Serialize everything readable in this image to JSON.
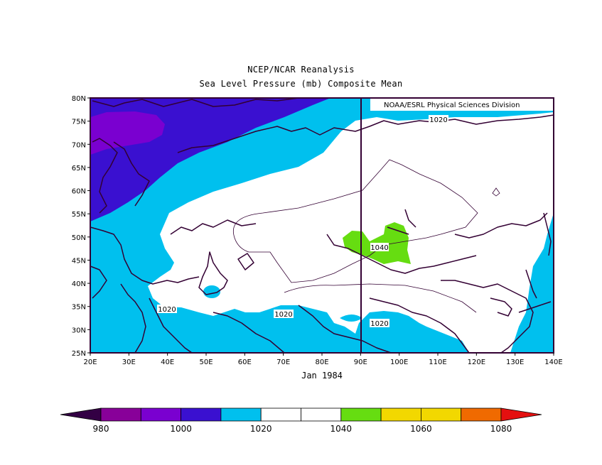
{
  "header": {
    "title": "NCEP/NCAR Reanalysis",
    "subtitle": "Sea Level Pressure (mb) Composite Mean"
  },
  "map": {
    "credit": "NOAA/ESRL Physical Sciences Division",
    "period_label": "Jan 1984",
    "lat_ticks": [
      "80N",
      "75N",
      "70N",
      "65N",
      "60N",
      "55N",
      "50N",
      "45N",
      "40N",
      "35N",
      "30N",
      "25N"
    ],
    "lon_ticks": [
      "20E",
      "30E",
      "40E",
      "50E",
      "60E",
      "70E",
      "80E",
      "90E",
      "100E",
      "110E",
      "120E",
      "130E",
      "140E"
    ],
    "contour_labels": [
      "1020",
      "1040",
      "1020",
      "1020",
      "1020"
    ],
    "extent": {
      "lon": [
        20,
        140
      ],
      "lat": [
        25,
        80
      ]
    },
    "colors": {
      "lt_990": "#7a00d0",
      "990_1010": "#3a10d0",
      "1010_1020": "#00c0ee",
      "1020_1040": "#ffffff",
      "1040_1050": "#66dd11",
      "frame": "#330033"
    }
  },
  "colorbar": {
    "labels": [
      "980",
      "1000",
      "1020",
      "1040",
      "1060",
      "1080"
    ],
    "bins": [
      "#330044",
      "#880099",
      "#7a00d0",
      "#3a10d0",
      "#00c0ee",
      "#ffffff",
      "#ffffff",
      "#66dd11",
      "#f2d800",
      "#f2d800",
      "#f06a00",
      "#e41010"
    ]
  }
}
